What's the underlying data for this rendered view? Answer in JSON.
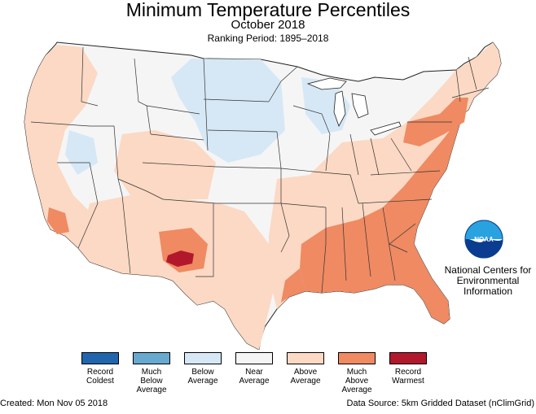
{
  "header": {
    "title": "Minimum Temperature Percentiles",
    "subtitle": "October 2018",
    "ranking_period": "Ranking Period: 1895–2018"
  },
  "colors": {
    "record_coldest": "#2166ac",
    "much_below": "#67a9cf",
    "below": "#d6e8f5",
    "near": "#f5f5f5",
    "above": "#fcd9c4",
    "much_above": "#ef8a62",
    "record_warmest": "#b2182b",
    "state_lines": "#222222",
    "water": "#ffffff"
  },
  "legend": {
    "items": [
      {
        "lines": [
          "Record",
          "Coldest"
        ],
        "color": "#2166ac"
      },
      {
        "lines": [
          "Much",
          "Below",
          "Average"
        ],
        "color": "#67a9cf"
      },
      {
        "lines": [
          "Below",
          "Average"
        ],
        "color": "#d6e8f5"
      },
      {
        "lines": [
          "Near",
          "Average"
        ],
        "color": "#f5f5f5"
      },
      {
        "lines": [
          "Above",
          "Average"
        ],
        "color": "#fcd9c4"
      },
      {
        "lines": [
          "Much",
          "Above",
          "Average"
        ],
        "color": "#ef8a62"
      },
      {
        "lines": [
          "Record",
          "Warmest"
        ],
        "color": "#b2182b"
      }
    ]
  },
  "agency": {
    "logo_text": "NOAA",
    "lines": [
      "National Centers for",
      "Environmental",
      "Information"
    ]
  },
  "footer": {
    "created": "Created: Mon Nov 05 2018",
    "source": "Data Source: 5km Gridded Dataset (nClimGrid)"
  }
}
